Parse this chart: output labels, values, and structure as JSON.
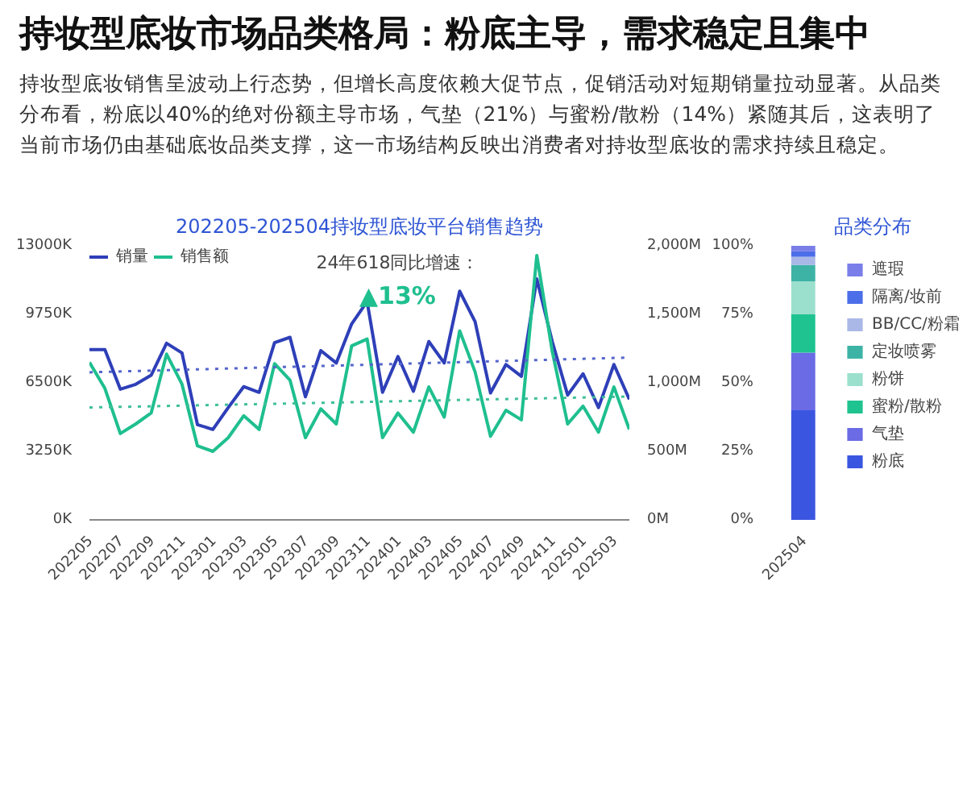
{
  "chart_data": [
    {
      "type": "other",
      "title": "持妆型底妆市场品类格局：粉底主导，需求稳定且集中",
      "subtitle": "持妆型底妆销售呈波动上行态势，但增长高度依赖大促节点，促销活动对短期销量拉动显著。从品类分布看，粉底以40%的绝对份额主导市场，气垫（21%）与蜜粉/散粉（14%）紧随其后，这表明了当前市场仍由基础底妆品类支撑，这一市场结构反映出消费者对持妆型底妆的需求持续且稳定。"
    },
    {
      "type": "line",
      "title": "202205-202504持妆型底妆平台销售趋势",
      "x": [
        "2022-05",
        "2022-06",
        "2022-07",
        "2022-08",
        "2022-09",
        "2022-10",
        "2022-11",
        "2022-12",
        "2023-01",
        "2023-02",
        "2023-03",
        "2023-04",
        "2023-05",
        "2023-06",
        "2023-07",
        "2023-08",
        "2023-09",
        "2023-10",
        "2023-11",
        "2023-12",
        "2024-01",
        "2024-02",
        "2024-03",
        "2024-04",
        "2024-05",
        "2024-06",
        "2024-07",
        "2024-08",
        "2024-09",
        "2024-10",
        "2024-11",
        "2024-12",
        "2025-01",
        "2025-02",
        "2025-03",
        "2025-04"
      ],
      "series": [
        {
          "name": "销量",
          "color": "#2e3fb8",
          "values": [
            8080,
            8080,
            6200,
            6430,
            6860,
            8380,
            7920,
            4520,
            4290,
            5330,
            6320,
            6050,
            8410,
            8660,
            5840,
            8030,
            7440,
            9300,
            10360,
            6050,
            7750,
            6100,
            8460,
            7440,
            10850,
            9400,
            6020,
            7370,
            6810,
            11430,
            8460,
            5920,
            6930,
            5330,
            7370,
            5720
          ]
        },
        {
          "name": "销售额",
          "color": "#1fbf8f",
          "axis": "y2",
          "values": [
            1150,
            960,
            630,
            700,
            780,
            1210,
            990,
            540,
            500,
            600,
            760,
            660,
            1140,
            1020,
            600,
            810,
            700,
            1270,
            1320,
            600,
            780,
            640,
            970,
            750,
            1380,
            1080,
            610,
            800,
            730,
            1930,
            1230,
            700,
            830,
            640,
            970,
            660
          ]
        },
        {
          "type": "line",
          "color": "#5566cc",
          "line_style": "dotted",
          "x": [
            "2022-05",
            "2025-04"
          ],
          "values": [
            7000,
            7700
          ]
        },
        {
          "type": "line",
          "color": "#3fbf9a",
          "line_style": "dotted",
          "axis": "y2",
          "x": [
            "2022-05",
            "2025-04"
          ],
          "values": [
            820,
            900
          ]
        }
      ],
      "xlim": [
        "2022-05",
        "2025-04"
      ],
      "xticks": [
        {
          "value": "2022-05",
          "label": "202205"
        },
        {
          "value": "2022-07",
          "label": "202207"
        },
        {
          "value": "2022-09",
          "label": "202209"
        },
        {
          "value": "2022-11",
          "label": "202211"
        },
        {
          "value": "2023-01",
          "label": "202301"
        },
        {
          "value": "2023-03",
          "label": "202303"
        },
        {
          "value": "2023-05",
          "label": "202305"
        },
        {
          "value": "2023-07",
          "label": "202307"
        },
        {
          "value": "2023-09",
          "label": "202309"
        },
        {
          "value": "2023-11",
          "label": "202311"
        },
        {
          "value": "2024-01",
          "label": "202401"
        },
        {
          "value": "2024-03",
          "label": "202403"
        },
        {
          "value": "2024-05",
          "label": "202405"
        },
        {
          "value": "2024-07",
          "label": "202407"
        },
        {
          "value": "2024-09",
          "label": "202409"
        },
        {
          "value": "2024-11",
          "label": "202411"
        },
        {
          "value": "2025-01",
          "label": "202501"
        },
        {
          "value": "2025-03",
          "label": "202503"
        }
      ],
      "ylim": [
        0,
        13000
      ],
      "yticks": [
        {
          "value": 0,
          "label": "0K"
        },
        {
          "value": 3250,
          "label": "3250K"
        },
        {
          "value": 6500,
          "label": "6500K"
        },
        {
          "value": 9750,
          "label": "9750K"
        },
        {
          "value": 13000,
          "label": "13000K"
        }
      ],
      "y2lim": [
        0,
        2000
      ],
      "y2ticks": [
        {
          "value": 0,
          "label": "0M"
        },
        {
          "value": 500,
          "label": "500M"
        },
        {
          "value": 1000,
          "label": "1,000M"
        },
        {
          "value": 1500,
          "label": "1,500M"
        },
        {
          "value": 2000,
          "label": "2,000M"
        }
      ],
      "annotations": [
        "24年618同比增速：",
        "▲13%"
      ],
      "legend": "top left"
    },
    {
      "type": "bar",
      "title": "品类分布",
      "stacked": true,
      "categories": [
        "202504"
      ],
      "series": [
        {
          "name": "粉底",
          "color": "#3a56e0",
          "values": [
            40
          ]
        },
        {
          "name": "气垫",
          "color": "#6b6be6",
          "values": [
            21
          ]
        },
        {
          "name": "蜜粉/散粉",
          "color": "#1fc38f",
          "values": [
            14
          ]
        },
        {
          "name": "粉饼",
          "color": "#9be0cc",
          "values": [
            12
          ]
        },
        {
          "name": "定妆喷雾",
          "color": "#3db3a6",
          "values": [
            6
          ]
        },
        {
          "name": "BB/CC/粉霜",
          "color": "#a9b8e6",
          "values": [
            3
          ]
        },
        {
          "name": "隔离/妆前",
          "color": "#4c6ee8",
          "values": [
            2
          ]
        },
        {
          "name": "遮瑕",
          "color": "#7a7ee8",
          "values": [
            2
          ]
        }
      ],
      "ylim": [
        0,
        100
      ],
      "yticks": [
        {
          "value": 0,
          "label": "0%"
        },
        {
          "value": 25,
          "label": "25%"
        },
        {
          "value": 50,
          "label": "50%"
        },
        {
          "value": 75,
          "label": "75%"
        },
        {
          "value": 100,
          "label": "100%"
        }
      ],
      "legend": "right"
    }
  ]
}
